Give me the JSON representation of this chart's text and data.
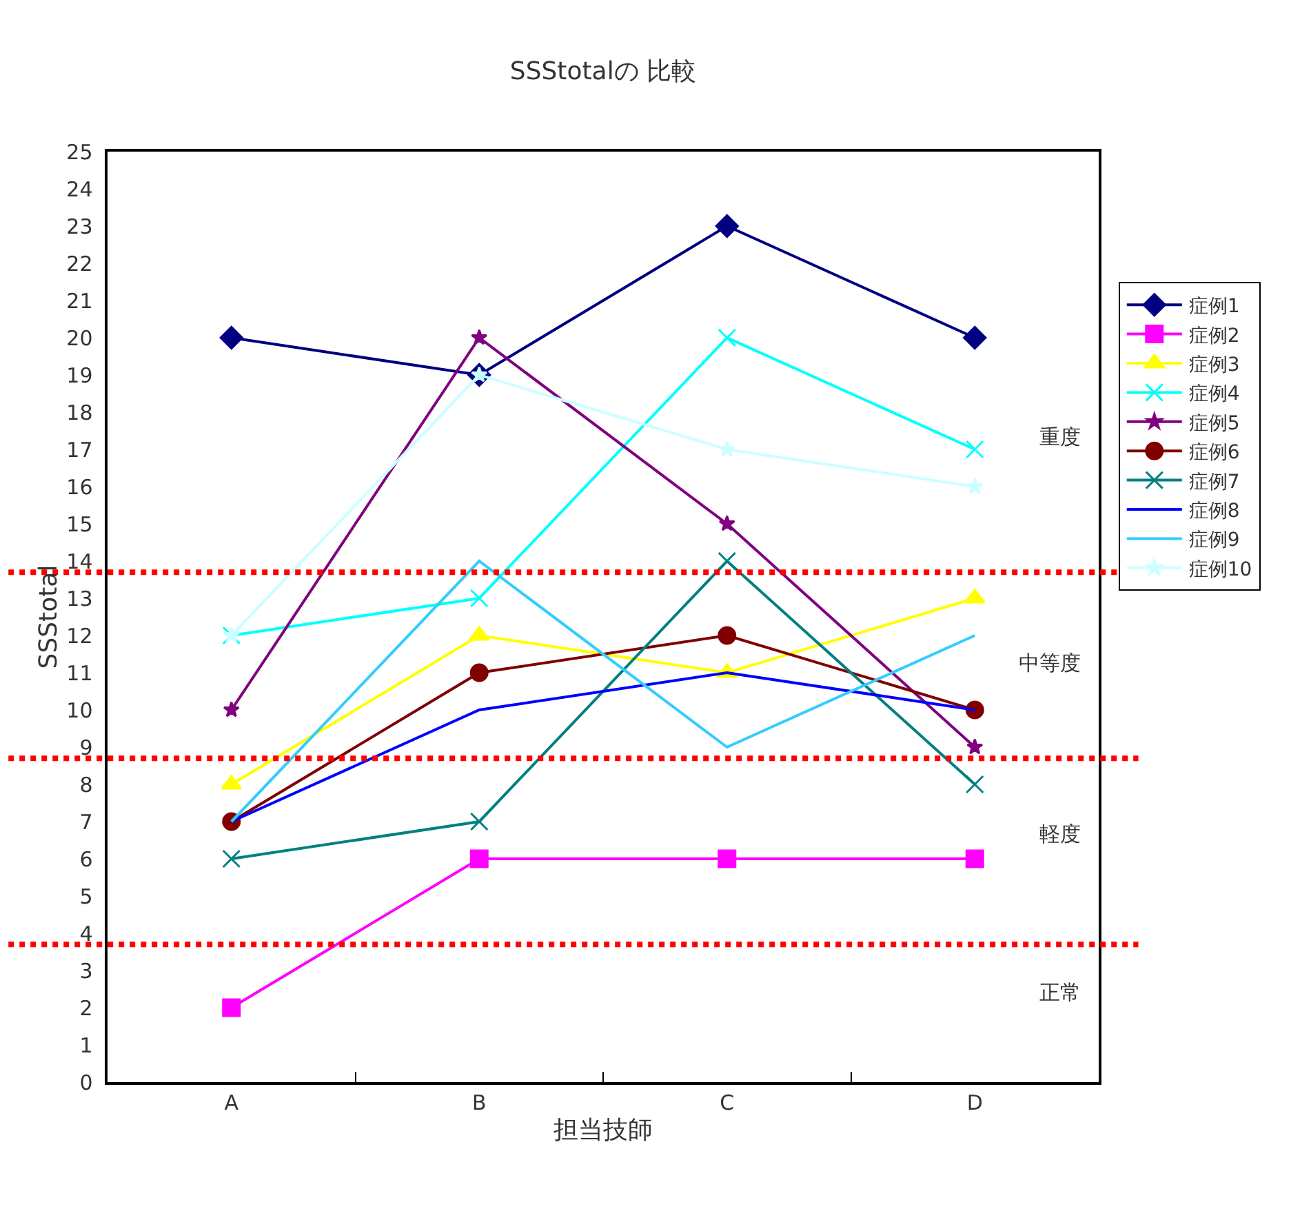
{
  "chart_data": {
    "type": "line",
    "title": "SSStotalの 比較",
    "xlabel": "担当技師",
    "ylabel": "SSStotal",
    "categories": [
      "A",
      "B",
      "C",
      "D"
    ],
    "series": [
      {
        "name": "症例1",
        "color": "#000080",
        "marker": "diamond",
        "values": [
          20,
          19,
          23,
          20
        ]
      },
      {
        "name": "症例2",
        "color": "#ff00ff",
        "marker": "square",
        "values": [
          2,
          6,
          6,
          6
        ]
      },
      {
        "name": "症例3",
        "color": "#ffff00",
        "marker": "triangle",
        "values": [
          8,
          12,
          11,
          13
        ]
      },
      {
        "name": "症例4",
        "color": "#00ffff",
        "marker": "cross",
        "values": [
          12,
          13,
          20,
          17
        ]
      },
      {
        "name": "症例5",
        "color": "#800080",
        "marker": "star",
        "values": [
          10,
          20,
          15,
          9
        ]
      },
      {
        "name": "症例6",
        "color": "#800000",
        "marker": "circle",
        "values": [
          7,
          11,
          12,
          10
        ]
      },
      {
        "name": "症例7",
        "color": "#008080",
        "marker": "cross",
        "values": [
          6,
          7,
          14,
          8
        ]
      },
      {
        "name": "症例8",
        "color": "#0000ff",
        "marker": "none",
        "values": [
          7,
          10,
          11,
          10
        ]
      },
      {
        "name": "症例9",
        "color": "#33ccff",
        "marker": "none",
        "values": [
          7,
          14,
          9,
          12
        ]
      },
      {
        "name": "症例10",
        "color": "#ccffff",
        "marker": "star",
        "values": [
          12,
          19,
          17,
          16
        ]
      }
    ],
    "ylim": [
      0,
      25
    ],
    "yticks": [
      0,
      1,
      2,
      3,
      4,
      5,
      6,
      7,
      8,
      9,
      10,
      11,
      12,
      13,
      14,
      15,
      16,
      17,
      18,
      19,
      20,
      21,
      22,
      23,
      24,
      25
    ],
    "legend": "right",
    "line_style": "solid",
    "ref_lines": [
      {
        "axis": "y",
        "value": 13.7,
        "color": "#ff0000",
        "line_style": "dotted"
      },
      {
        "axis": "y",
        "value": 8.7,
        "color": "#ff0000",
        "line_style": "dotted"
      },
      {
        "axis": "y",
        "value": 3.7,
        "color": "#ff0000",
        "line_style": "dotted"
      }
    ],
    "annotations": [
      "重度",
      "中等度",
      "軽度",
      "正常"
    ]
  }
}
